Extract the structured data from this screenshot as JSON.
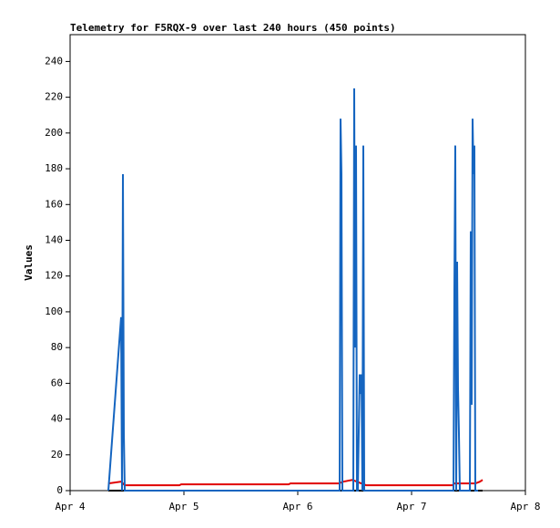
{
  "chart_data": {
    "type": "line",
    "title": "Telemetry for F5RQX-9 over last 240 hours (450 points)",
    "y_label": "Values",
    "xlim": [
      4,
      8
    ],
    "xticks": [
      {
        "value": 4,
        "label": "Apr 4"
      },
      {
        "value": 5,
        "label": "Apr 5"
      },
      {
        "value": 6,
        "label": "Apr 6"
      },
      {
        "value": 7,
        "label": "Apr 7"
      },
      {
        "value": 8,
        "label": "Apr 8"
      }
    ],
    "ylim": [
      0,
      255
    ],
    "yticks": [
      0,
      20,
      40,
      60,
      80,
      100,
      120,
      140,
      160,
      180,
      200,
      220,
      240
    ],
    "grid": false,
    "series": [
      {
        "color": "#000000",
        "x": [
          4.336,
          7.624
        ],
        "values": [
          0,
          0
        ]
      },
      {
        "color": "#e00000",
        "x": [
          4.336,
          4.448,
          4.48,
          4.96,
          4.976,
          5.92,
          5.936,
          6.36,
          6.4,
          6.48,
          6.56,
          6.6,
          7.36,
          7.376,
          7.56,
          7.6,
          7.624
        ],
        "values": [
          4,
          5,
          3,
          3,
          3.5,
          3.5,
          4,
          4,
          5,
          6,
          4,
          3,
          3,
          4,
          4,
          5,
          6
        ]
      },
      {
        "color": "#1565c0",
        "x": [
          4.336,
          4.448,
          4.456,
          4.464,
          4.472,
          4.48,
          6.368,
          6.376,
          6.384,
          6.392,
          6.4,
          6.488,
          6.496,
          6.504,
          6.512,
          6.52,
          6.528,
          6.536,
          6.544,
          6.552,
          6.56,
          6.568,
          6.576,
          6.584,
          6.592,
          6.6,
          7.368,
          7.376,
          7.384,
          7.392,
          7.4,
          7.408,
          7.416,
          7.424,
          7.432,
          7.44,
          7.512,
          7.52,
          7.528,
          7.536,
          7.544,
          7.552,
          7.56,
          7.568,
          7.576,
          7.584
        ],
        "values": [
          0,
          97,
          0,
          177,
          32,
          0,
          0,
          208,
          177,
          0,
          0,
          0,
          225,
          80,
          193,
          0,
          0,
          33,
          65,
          54,
          65,
          0,
          193,
          0,
          0,
          0,
          0,
          112,
          193,
          0,
          128,
          57,
          32,
          0,
          0,
          0,
          0,
          145,
          48,
          208,
          177,
          193,
          0,
          0,
          0,
          0
        ]
      }
    ]
  }
}
